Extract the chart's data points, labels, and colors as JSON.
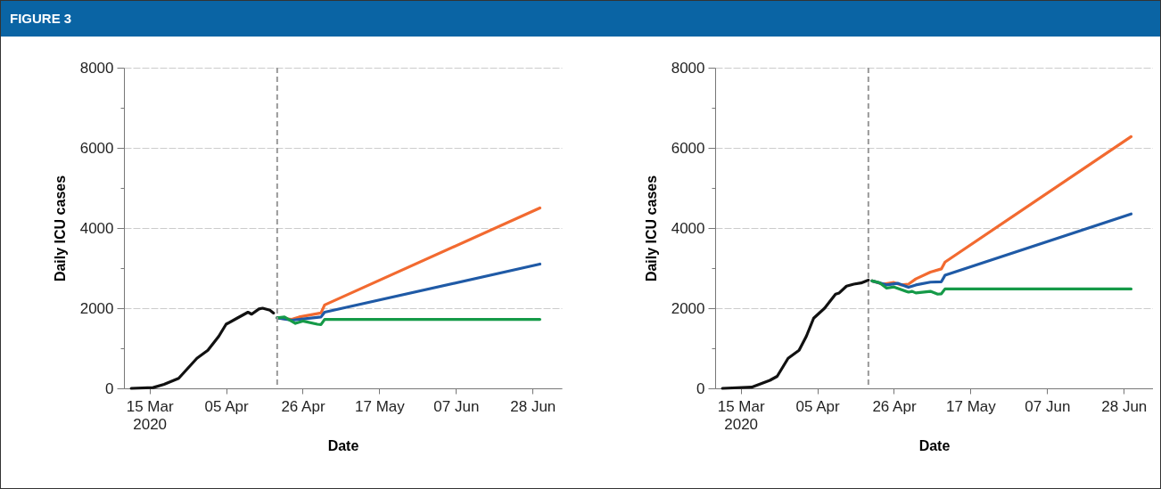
{
  "chart_data": [
    {
      "type": "line",
      "title": "FIGURE 3",
      "xlabel": "Date",
      "ylabel": "Daily ICU cases",
      "xlim": [
        "2020-03-08",
        "2020-07-06"
      ],
      "ylim": [
        0,
        8000
      ],
      "xticks": [
        {
          "value": "2020-03-15",
          "label": "15 Mar\n2020"
        },
        {
          "value": "2020-04-05",
          "label": "05 Apr"
        },
        {
          "value": "2020-04-26",
          "label": "26 Apr"
        },
        {
          "value": "2020-05-17",
          "label": "17 May"
        },
        {
          "value": "2020-06-07",
          "label": "07 Jun"
        },
        {
          "value": "2020-06-28",
          "label": "28 Jun"
        }
      ],
      "yticks": [
        0,
        {
          "value": 1000,
          "label": null
        },
        2000,
        {
          "value": 3000,
          "label": null
        },
        4000,
        {
          "value": 5000,
          "label": null
        },
        6000,
        {
          "value": 7000,
          "label": null
        },
        8000
      ],
      "grid": "y",
      "ref_lines": [
        {
          "axis": "x",
          "value": "2020-04-19",
          "label": null,
          "color": "#999999",
          "line_style": "dashed"
        }
      ],
      "series": [
        {
          "color": "#111111",
          "x": [
            "2020-03-10",
            "2020-03-16",
            "2020-03-19",
            "2020-03-23",
            "2020-03-25",
            "2020-03-28",
            "2020-03-31",
            "2020-04-03",
            "2020-04-05",
            "2020-04-08",
            "2020-04-11",
            "2020-04-12",
            "2020-04-14",
            "2020-04-15",
            "2020-04-17",
            "2020-04-18"
          ],
          "values": [
            0,
            20,
            100,
            250,
            450,
            750,
            950,
            1300,
            1600,
            1750,
            1900,
            1850,
            1980,
            2000,
            1950,
            1880
          ]
        },
        {
          "color": "#f26a30",
          "x": [
            "2020-04-19",
            "2020-04-23",
            "2020-04-25",
            "2020-05-01",
            "2020-05-02",
            "2020-06-30"
          ],
          "values": [
            1760,
            1720,
            1780,
            1880,
            2080,
            4500
          ]
        },
        {
          "color": "#1f5aa6",
          "x": [
            "2020-04-19",
            "2020-04-23",
            "2020-05-01",
            "2020-05-02",
            "2020-06-30"
          ],
          "values": [
            1760,
            1700,
            1780,
            1900,
            3100
          ]
        },
        {
          "color": "#159a48",
          "x": [
            "2020-04-19",
            "2020-04-21",
            "2020-04-24",
            "2020-04-26",
            "2020-04-30",
            "2020-05-01",
            "2020-05-02",
            "2020-06-30"
          ],
          "values": [
            1760,
            1780,
            1620,
            1680,
            1600,
            1590,
            1720,
            1720
          ]
        }
      ]
    },
    {
      "type": "line",
      "xlabel": "Date",
      "ylabel": "Daily ICU cases",
      "xlim": [
        "2020-03-08",
        "2020-07-06"
      ],
      "ylim": [
        0,
        8000
      ],
      "xticks": [
        {
          "value": "2020-03-15",
          "label": "15 Mar\n2020"
        },
        {
          "value": "2020-04-05",
          "label": "05 Apr"
        },
        {
          "value": "2020-04-26",
          "label": "26 Apr"
        },
        {
          "value": "2020-05-17",
          "label": "17 May"
        },
        {
          "value": "2020-06-07",
          "label": "07 Jun"
        },
        {
          "value": "2020-06-28",
          "label": "28 Jun"
        }
      ],
      "yticks": [
        0,
        {
          "value": 1000,
          "label": null
        },
        2000,
        {
          "value": 3000,
          "label": null
        },
        4000,
        {
          "value": 5000,
          "label": null
        },
        6000,
        {
          "value": 7000,
          "label": null
        },
        8000
      ],
      "grid": "y",
      "ref_lines": [
        {
          "axis": "x",
          "value": "2020-04-19",
          "label": null,
          "color": "#999999",
          "line_style": "dashed"
        }
      ],
      "series": [
        {
          "color": "#111111",
          "x": [
            "2020-03-10",
            "2020-03-18",
            "2020-03-23",
            "2020-03-25",
            "2020-03-28",
            "2020-03-31",
            "2020-04-02",
            "2020-04-04",
            "2020-04-07",
            "2020-04-10",
            "2020-04-11",
            "2020-04-13",
            "2020-04-15",
            "2020-04-17",
            "2020-04-19"
          ],
          "values": [
            0,
            30,
            200,
            300,
            750,
            950,
            1300,
            1750,
            2000,
            2350,
            2380,
            2550,
            2600,
            2630,
            2700
          ]
        },
        {
          "color": "#f26a30",
          "x": [
            "2020-04-20",
            "2020-04-23",
            "2020-04-26",
            "2020-04-28",
            "2020-04-30",
            "2020-05-02",
            "2020-05-06",
            "2020-05-09",
            "2020-05-10",
            "2020-06-30"
          ],
          "values": [
            2680,
            2600,
            2640,
            2580,
            2600,
            2730,
            2900,
            2980,
            3150,
            6280
          ]
        },
        {
          "color": "#1f5aa6",
          "x": [
            "2020-04-20",
            "2020-04-24",
            "2020-04-27",
            "2020-04-30",
            "2020-05-02",
            "2020-05-06",
            "2020-05-09",
            "2020-05-10",
            "2020-06-30"
          ],
          "values": [
            2680,
            2580,
            2620,
            2520,
            2580,
            2650,
            2660,
            2820,
            4350
          ]
        },
        {
          "color": "#159a48",
          "x": [
            "2020-04-20",
            "2020-04-22",
            "2020-04-24",
            "2020-04-26",
            "2020-04-30",
            "2020-05-01",
            "2020-05-02",
            "2020-05-06",
            "2020-05-08",
            "2020-05-09",
            "2020-05-10",
            "2020-06-30"
          ],
          "values": [
            2680,
            2640,
            2500,
            2530,
            2400,
            2420,
            2380,
            2420,
            2350,
            2360,
            2480,
            2480
          ]
        }
      ]
    }
  ]
}
